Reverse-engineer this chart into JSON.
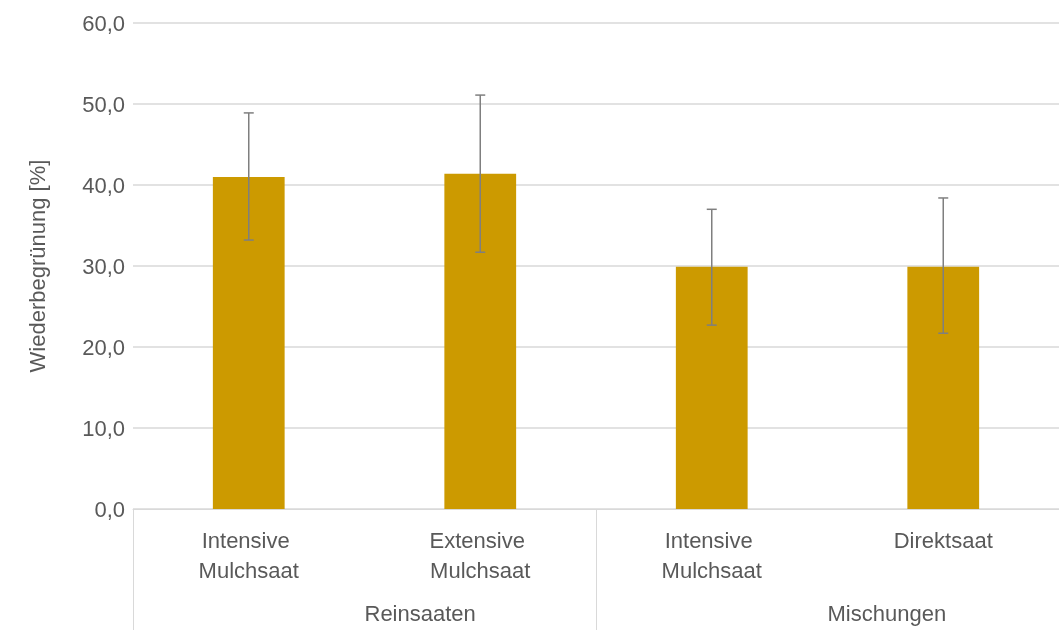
{
  "chart_data": {
    "type": "bar",
    "ylabel": "Wiederbegrünung [%]",
    "categories": [
      "Intensive Mulchsaat",
      "Extensive Mulchsaat",
      "Intensive Mulchsaat",
      "Direktsaat"
    ],
    "values": [
      41.0,
      41.4,
      29.9,
      29.9
    ],
    "errors": [
      [
        33.2,
        48.9
      ],
      [
        31.7,
        51.1
      ],
      [
        22.7,
        37.0
      ],
      [
        21.7,
        38.4
      ]
    ],
    "color": "#cc9a00",
    "annotations": [
      "Reinsaaten",
      "Mischungen"
    ],
    "ylim": [
      0,
      60
    ],
    "yticks": [
      {
        "value": 0,
        "label": "0,0"
      },
      {
        "value": 10,
        "label": "10,0"
      },
      {
        "value": 20,
        "label": "20,0"
      },
      {
        "value": 30,
        "label": "30,0"
      },
      {
        "value": 40,
        "label": "40,0"
      },
      {
        "value": 50,
        "label": "50,0"
      },
      {
        "value": 60,
        "label": "60,0"
      }
    ],
    "grid": "y"
  }
}
